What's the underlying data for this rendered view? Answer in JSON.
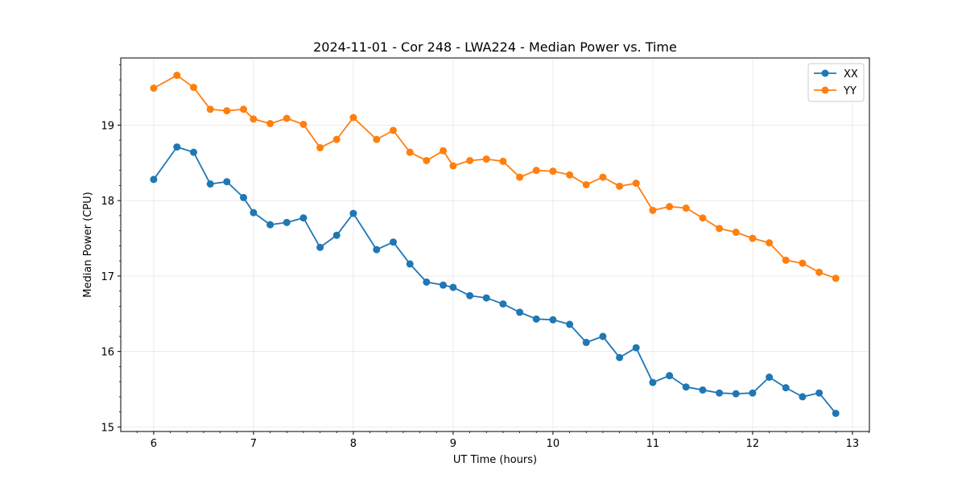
{
  "chart_data": {
    "type": "line",
    "title": "2024-11-01 - Cor 248 - LWA224 - Median Power vs. Time",
    "xlabel": "UT Time (hours)",
    "ylabel": "Median Power (CPU)",
    "xlim": [
      5.67,
      13.17
    ],
    "ylim": [
      14.94,
      19.89
    ],
    "xticks": [
      6,
      7,
      8,
      9,
      10,
      11,
      12,
      13
    ],
    "yticks": [
      15,
      16,
      17,
      18,
      19
    ],
    "grid": true,
    "legend_position": "top-right",
    "x": [
      6.0,
      6.233,
      6.4,
      6.567,
      6.733,
      6.9,
      7.0,
      7.167,
      7.333,
      7.5,
      7.667,
      7.833,
      8.0,
      8.233,
      8.4,
      8.567,
      8.733,
      8.9,
      9.0,
      9.167,
      9.333,
      9.5,
      9.667,
      9.833,
      10.0,
      10.167,
      10.333,
      10.5,
      10.667,
      10.833,
      11.0,
      11.167,
      11.333,
      11.5,
      11.667,
      11.833,
      12.0,
      12.167,
      12.333,
      12.5,
      12.667,
      12.833
    ],
    "series": [
      {
        "name": "XX",
        "color": "#1f77b4",
        "values": [
          18.28,
          18.71,
          18.64,
          18.22,
          18.25,
          18.04,
          17.84,
          17.68,
          17.71,
          17.77,
          17.38,
          17.54,
          17.83,
          17.35,
          17.45,
          17.16,
          16.92,
          16.88,
          16.85,
          16.74,
          16.71,
          16.63,
          16.52,
          16.43,
          16.42,
          16.36,
          16.12,
          16.2,
          15.92,
          16.05,
          15.59,
          15.68,
          15.53,
          15.49,
          15.45,
          15.44,
          15.45,
          15.66,
          15.52,
          15.4,
          15.45,
          15.18
        ]
      },
      {
        "name": "YY",
        "color": "#ff7f0e",
        "values": [
          19.49,
          19.66,
          19.5,
          19.21,
          19.19,
          19.21,
          19.08,
          19.02,
          19.09,
          19.01,
          18.7,
          18.81,
          19.1,
          18.81,
          18.93,
          18.64,
          18.53,
          18.66,
          18.46,
          18.53,
          18.55,
          18.52,
          18.31,
          18.4,
          18.39,
          18.34,
          18.21,
          18.31,
          18.19,
          18.23,
          17.87,
          17.92,
          17.9,
          17.77,
          17.63,
          17.58,
          17.5,
          17.44,
          17.21,
          17.17,
          17.05,
          16.97
        ]
      }
    ]
  }
}
